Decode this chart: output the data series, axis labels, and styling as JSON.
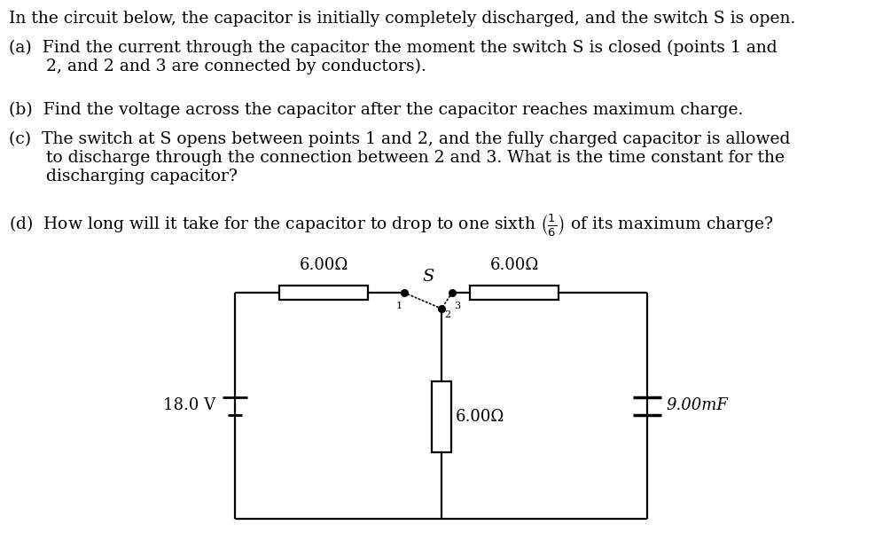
{
  "background_color": "#ffffff",
  "text_color": "#000000",
  "title_text": "In the circuit below, the capacitor is initially completely discharged, and the switch S is open.",
  "q_a": "(a)  Find the current through the capacitor the moment the switch S is closed (points 1 and\n       2, and 2 and 3 are connected by conductors).",
  "q_b": "(b)  Find the voltage across the capacitor after the capacitor reaches maximum charge.",
  "q_c": "(c)  The switch at S opens between points 1 and 2, and the fully charged capacitor is allowed\n       to discharge through the connection between 2 and 3. What is the time constant for the\n       discharging capacitor?",
  "q_d_pre": "(d)  How long will it take for the capacitor to drop to one sixth ",
  "q_d_post": " of its maximum charge?",
  "battery_label": "18.0 V",
  "cap_label": "9.00mF",
  "res_top_left_label": "6.00Ω",
  "res_top_right_label": "6.00Ω",
  "res_mid_label": "6.00Ω",
  "switch_label": "S",
  "lw": 1.6
}
